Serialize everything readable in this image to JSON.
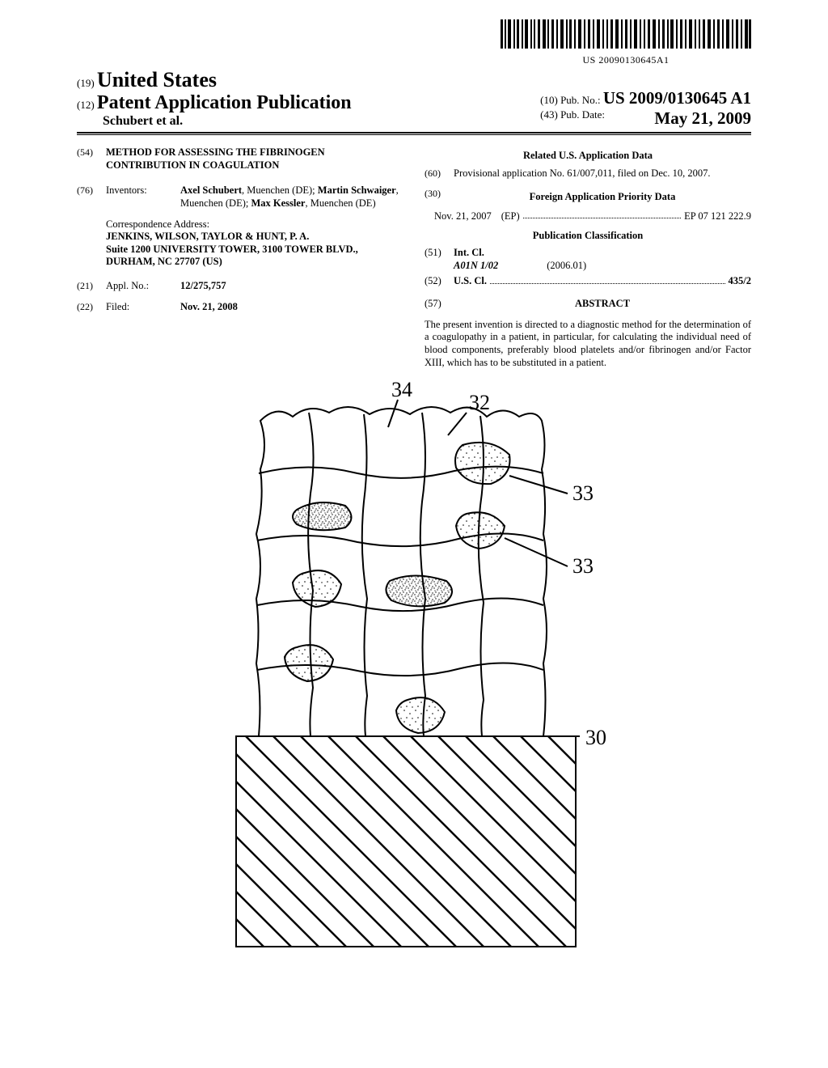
{
  "barcode_text": "US 20090130645A1",
  "header": {
    "code19": "(19)",
    "country": "United States",
    "code12": "(12)",
    "pub_type": "Patent Application Publication",
    "authors": "Schubert et al.",
    "code10": "(10)",
    "pubno_label": "Pub. No.:",
    "pubno": "US 2009/0130645 A1",
    "code43": "(43)",
    "pubdate_label": "Pub. Date:",
    "pubdate": "May 21, 2009"
  },
  "left": {
    "f54_code": "(54)",
    "f54_title": "METHOD FOR ASSESSING THE FIBRINOGEN CONTRIBUTION IN COAGULATION",
    "f76_code": "(76)",
    "f76_label": "Inventors:",
    "f76_value_html": "Axel Schubert|, Muenchen (DE); |Martin Schwaiger|, Muenchen (DE); |Max Kessler|, Muenchen (DE)",
    "corr_label": "Correspondence Address:",
    "corr_l1": "JENKINS, WILSON, TAYLOR & HUNT, P. A.",
    "corr_l2": "Suite 1200 UNIVERSITY TOWER, 3100 TOWER BLVD.,",
    "corr_l3": "DURHAM, NC 27707 (US)",
    "f21_code": "(21)",
    "f21_label": "Appl. No.:",
    "f21_value": "12/275,757",
    "f22_code": "(22)",
    "f22_label": "Filed:",
    "f22_value": "Nov. 21, 2008"
  },
  "right": {
    "related_heading": "Related U.S. Application Data",
    "f60_code": "(60)",
    "f60_text": "Provisional application No. 61/007,011, filed on Dec. 10, 2007.",
    "f30_code": "(30)",
    "foreign_heading": "Foreign Application Priority Data",
    "priority_date": "Nov. 21, 2007",
    "priority_country": "(EP)",
    "priority_num": "EP 07 121 222.9",
    "pubclass_heading": "Publication Classification",
    "f51_code": "(51)",
    "f51_label": "Int. Cl.",
    "f51_class": "A01N 1/02",
    "f51_ver": "(2006.01)",
    "f52_code": "(52)",
    "f52_label": "U.S. Cl.",
    "f52_value": "435/2",
    "f57_code": "(57)",
    "abstract_heading": "ABSTRACT",
    "abstract_text": "The present invention is directed to a diagnostic method for the determination of a coagulopathy in a patient, in particular, for calculating the individual need of blood components, preferably blood platelets and/or fibrinogen and/or Factor XIII, which has to be substituted in a patient."
  },
  "figure": {
    "labels": {
      "l34": "34",
      "l32": "32",
      "l33a": "33",
      "l33b": "33",
      "l30": "30"
    },
    "label_fontsize": 26,
    "stroke": "#000000",
    "stroke_width": 2,
    "hatch_spacing": 34
  }
}
